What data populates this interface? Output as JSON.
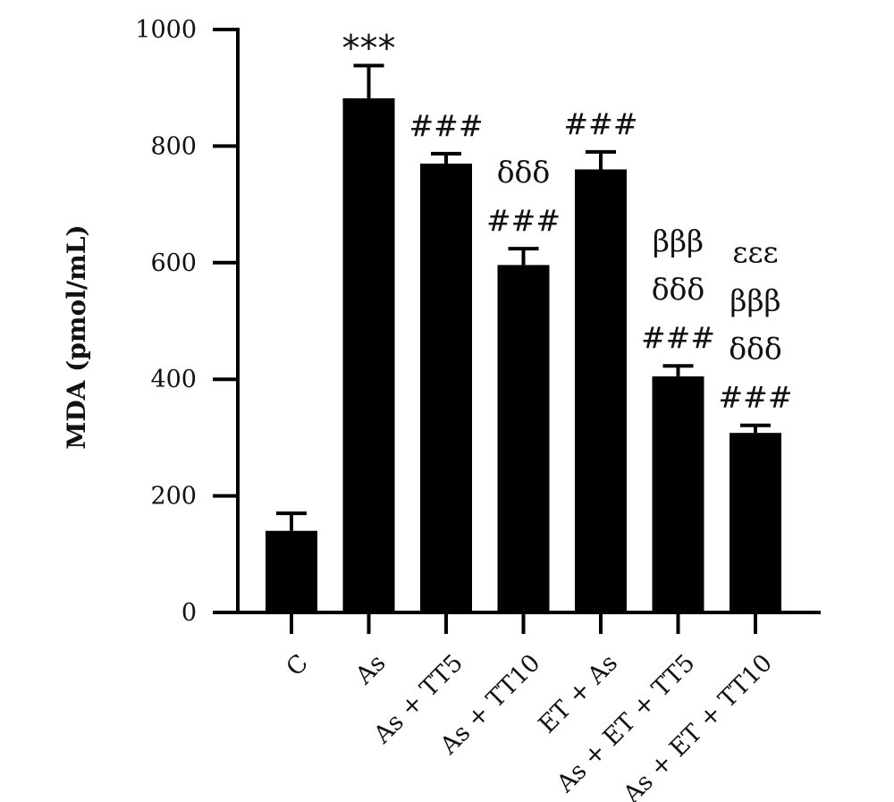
{
  "chart_data": {
    "type": "bar",
    "title": "",
    "xlabel": "",
    "ylabel": "MDA (pmol/mL)",
    "ylim": [
      0,
      1000
    ],
    "yticks": [
      0,
      200,
      400,
      600,
      800,
      1000
    ],
    "grid": false,
    "legend": "none",
    "categories": [
      "C",
      "As",
      "As + TT5",
      "As + TT10",
      "ET + As",
      "As + ET + TT5",
      "As + ET + TT10"
    ],
    "values": [
      140,
      882,
      770,
      596,
      760,
      405,
      308
    ],
    "errors": [
      30,
      56,
      17,
      28,
      30,
      18,
      13
    ],
    "significance": [
      [],
      [
        "***"
      ],
      [
        "###"
      ],
      [
        "δδδ",
        "###"
      ],
      [
        "###"
      ],
      [
        "βββ",
        "δδδ",
        "###"
      ],
      [
        "εεε",
        "βββ",
        "δδδ",
        "###"
      ]
    ],
    "colors": {
      "bar": "#000000",
      "axis": "#000000",
      "text": "#111111"
    }
  }
}
